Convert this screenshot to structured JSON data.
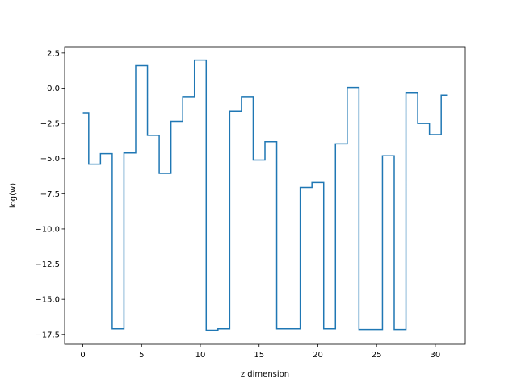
{
  "chart_data": {
    "type": "line",
    "drawstyle": "steps-mid",
    "title": "",
    "xlabel": "z dimension",
    "ylabel": "log(w)",
    "xlim": [
      -1.55,
      32.55
    ],
    "ylim": [
      -18.2,
      2.95
    ],
    "xticks": [
      0,
      5,
      10,
      15,
      20,
      25,
      30
    ],
    "yticks": [
      2.5,
      0.0,
      -2.5,
      -5.0,
      -7.5,
      -10.0,
      -12.5,
      -15.0,
      -17.5
    ],
    "ytick_labels": [
      "2.5",
      "0.0",
      "−2.5",
      "−5.0",
      "−7.5",
      "−10.0",
      "−12.5",
      "−15.0",
      "−17.5"
    ],
    "grid": false,
    "line_color": "#1f77b4",
    "series": [
      {
        "x": [
          0,
          1,
          2,
          3,
          4,
          5,
          6,
          7,
          8,
          9,
          10,
          11,
          12,
          13,
          14,
          15,
          16,
          17,
          18,
          19,
          20,
          21,
          22,
          23,
          24,
          25,
          26,
          27,
          28,
          29,
          30,
          31
        ],
        "values": [
          -1.75,
          -5.4,
          -4.65,
          -17.1,
          -4.6,
          1.6,
          -3.35,
          -6.05,
          -2.35,
          -0.6,
          2.0,
          -17.2,
          -17.1,
          -1.65,
          -0.6,
          -5.1,
          -3.8,
          -17.1,
          -17.1,
          -7.05,
          -6.7,
          -17.1,
          -3.95,
          0.05,
          -17.15,
          -17.15,
          -4.8,
          -17.15,
          -0.3,
          -2.5,
          -3.3,
          -0.5
        ]
      }
    ]
  }
}
